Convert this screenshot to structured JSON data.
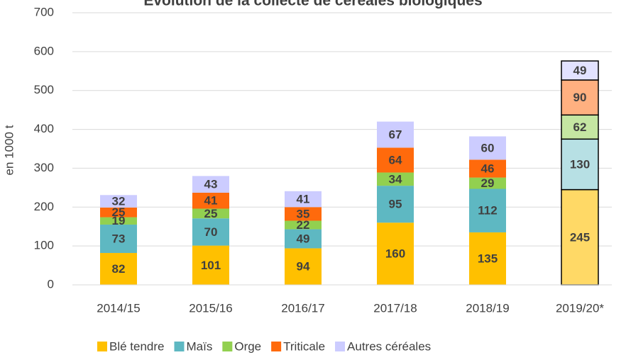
{
  "chart_data": {
    "type": "stacked_bar",
    "title": "Évolution de la collecte de céréales biologiques",
    "y_label": "en 1000 t",
    "categories": [
      "2014/15",
      "2015/16",
      "2016/17",
      "2017/18",
      "2018/19",
      "2019/20*"
    ],
    "series": [
      {
        "name": "Blé tendre",
        "color": "#ffc000",
        "colors": [
          "#ffc000",
          "#ffc000",
          "#ffc000",
          "#ffc000",
          "#ffc000",
          "#ffd966"
        ],
        "values": [
          82,
          101,
          94,
          160,
          135,
          245
        ]
      },
      {
        "name": "Maïs",
        "color": "#5eb8c2",
        "colors": [
          "#5eb8c2",
          "#5eb8c2",
          "#5eb8c2",
          "#5eb8c2",
          "#5eb8c2",
          "#b7e0e4"
        ],
        "values": [
          73,
          70,
          49,
          95,
          112,
          130
        ]
      },
      {
        "name": "Orge",
        "color": "#92d050",
        "colors": [
          "#92d050",
          "#92d050",
          "#92d050",
          "#92d050",
          "#92d050",
          "#c5e6a2"
        ],
        "values": [
          19,
          25,
          22,
          34,
          29,
          62
        ]
      },
      {
        "name": "Triticale",
        "color": "#ff6a0c",
        "colors": [
          "#ff6a0c",
          "#ff6a0c",
          "#ff6a0c",
          "#ff6a0c",
          "#ff6a0c",
          "#ffb080"
        ],
        "values": [
          25,
          41,
          35,
          64,
          46,
          90
        ]
      },
      {
        "name": "Autres céréales",
        "color": "#ccccff",
        "colors": [
          "#ccccff",
          "#ccccff",
          "#ccccff",
          "#ccccff",
          "#ccccff",
          "#e2e2ff"
        ],
        "values": [
          32,
          43,
          41,
          67,
          60,
          49
        ]
      }
    ],
    "outlined": [
      false,
      false,
      false,
      false,
      false,
      true
    ],
    "ylim": [
      0,
      700
    ],
    "yticks": [
      0,
      100,
      200,
      300,
      400,
      500,
      600,
      700
    ],
    "grid": true,
    "legend": "bottom"
  }
}
